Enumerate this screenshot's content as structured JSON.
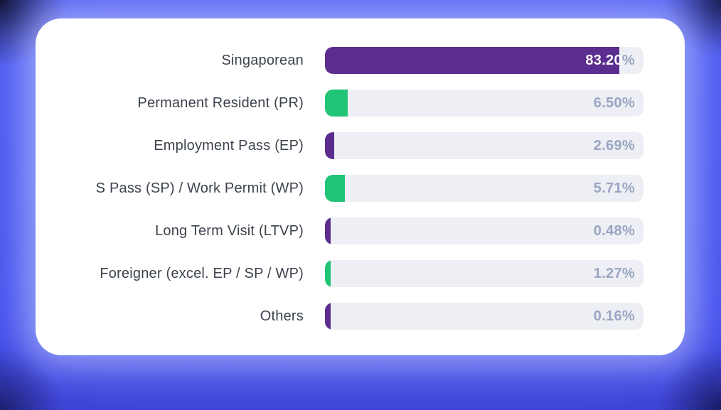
{
  "chart_data": {
    "type": "bar",
    "orientation": "horizontal",
    "title": "",
    "xlabel": "",
    "ylabel": "",
    "xlim": [
      0,
      90
    ],
    "grid": false,
    "legend": false,
    "percent_sign": "%",
    "categories": [
      "Singaporean",
      "Permanent Resident (PR)",
      "Employment Pass (EP)",
      "S Pass (SP) / Work Permit (WP)",
      "Long Term Visit (LTVP)",
      "Foreigner (excel. EP / SP / WP)",
      "Others"
    ],
    "values": [
      83.2,
      6.5,
      2.69,
      5.71,
      0.48,
      1.27,
      0.16
    ],
    "value_labels": [
      "83.20",
      "6.50",
      "2.69",
      "5.71",
      "0.48",
      "1.27",
      "0.16"
    ],
    "bar_colors": [
      "#5b2d8e",
      "#1fc476",
      "#5b2d8e",
      "#1fc476",
      "#5b2d8e",
      "#1fc476",
      "#5b2d8e"
    ]
  },
  "colors": {
    "background": "#4350ec",
    "card": "#ffffff",
    "track": "#edeff4",
    "purple": "#5b2d8e",
    "green": "#1fc476",
    "label_text": "#3d434e",
    "value_text": "#9aa5c2",
    "value_on_fill": "#ffffff"
  }
}
